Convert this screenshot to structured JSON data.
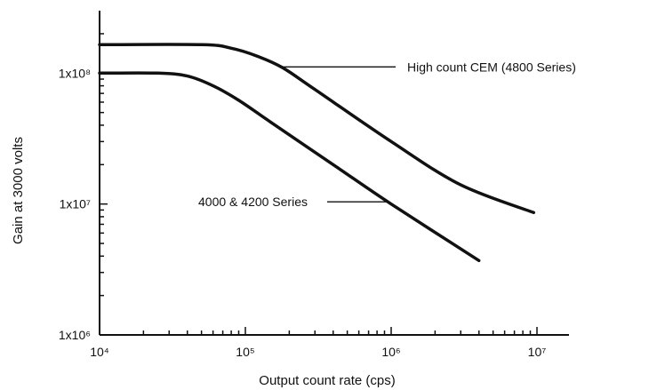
{
  "chart_data": {
    "type": "line",
    "title": "",
    "xlabel": "Output count rate (cps)",
    "ylabel": "Gain at 3000 volts",
    "x_scale": "log",
    "y_scale": "log",
    "xlim": [
      10000,
      10000000
    ],
    "ylim": [
      1000000,
      300000000
    ],
    "grid": false,
    "x_ticks": [
      {
        "value": 10000,
        "label": "10⁴"
      },
      {
        "value": 100000,
        "label": "10⁵"
      },
      {
        "value": 1000000,
        "label": "10⁶"
      },
      {
        "value": 10000000,
        "label": "10⁷"
      }
    ],
    "y_ticks": [
      {
        "value": 1000000,
        "label": "1x10⁶"
      },
      {
        "value": 10000000,
        "label": "1x10⁷"
      },
      {
        "value": 100000000,
        "label": "1x10⁸"
      }
    ],
    "series": [
      {
        "name": "High count CEM (4800 Series)",
        "x": [
          10000,
          50000,
          80000,
          120000,
          180000,
          300000,
          1000000,
          3000000,
          9500000
        ],
        "y": [
          165000000,
          165000000,
          155000000,
          135000000,
          110000000,
          75000000,
          30000000,
          14000000,
          8600000
        ]
      },
      {
        "name": "4000 & 4200 Series",
        "x": [
          10000,
          25000,
          40000,
          60000,
          90000,
          150000,
          400000,
          1000000,
          4000000
        ],
        "y": [
          100000000,
          100000000,
          95000000,
          80000000,
          62000000,
          42000000,
          20000000,
          10000000,
          3700000
        ]
      }
    ],
    "annotations": [
      {
        "text": "High count CEM (4800 Series)",
        "series": 0,
        "at_x": 175000
      },
      {
        "text": "4000 & 4200 Series",
        "series": 1,
        "at_x": 950000
      }
    ]
  }
}
